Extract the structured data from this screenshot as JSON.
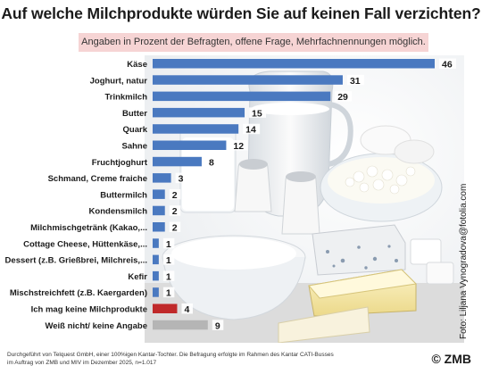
{
  "header": {
    "title": "Auf welche Milchprodukte würden Sie auf keinen Fall verzichten?",
    "subtitle": "Angaben in Prozent der Befragten, offene Frage, Mehrfachnennungen möglich."
  },
  "chart_data": {
    "type": "bar",
    "orientation": "horizontal",
    "title": "Auf welche Milchprodukte würden Sie auf keinen Fall verzichten?",
    "subtitle": "Angaben in Prozent der Befragten, offene Frage, Mehrfachnennungen möglich.",
    "categories": [
      "Käse",
      "Joghurt, natur",
      "Trinkmilch",
      "Butter",
      "Quark",
      "Sahne",
      "Fruchtjoghurt",
      "Schmand, Creme fraiche",
      "Buttermilch",
      "Kondensmilch",
      "Milchmischgetränk (Kakao,...",
      "Cottage Cheese, Hüttenkäse,...",
      "Dessert (z.B. Grießbrei, Milchreis,...",
      "Kefir",
      "Mischstreichfett (z.B. Kaergarden)",
      "Ich mag keine Milchprodukte",
      "Weiß nicht/ keine Angabe"
    ],
    "values": [
      46,
      31,
      29,
      15,
      14,
      12,
      8,
      3,
      2,
      2,
      2,
      1,
      1,
      1,
      1,
      4,
      9
    ],
    "bar_colors": [
      "#4a79c0",
      "#4a79c0",
      "#4a79c0",
      "#4a79c0",
      "#4a79c0",
      "#4a79c0",
      "#4a79c0",
      "#4a79c0",
      "#4a79c0",
      "#4a79c0",
      "#4a79c0",
      "#4a79c0",
      "#4a79c0",
      "#4a79c0",
      "#4a79c0",
      "#c0292a",
      "#b5b5b5"
    ],
    "xlim": [
      0,
      46
    ],
    "grid": false,
    "legend": "none"
  },
  "colors": {
    "bar_main": "#4a79c0",
    "bar_highlight": "#c0292a",
    "bar_neutral": "#b5b5b5",
    "subtitle_bg": "#f6d4d4"
  },
  "credits": {
    "photo": "Foto: Liljana Vynogradova@fotolia.com",
    "footnote_line1": "Durchgeführt von Telquest GmbH, einer 100%igen Kantar-Tochter. Die Befragung erfolgte im Rahmen des Kantar CATI-Busses",
    "footnote_line2": "im Auftrag von ZMB und MIV im Dezember 2025, n=1.017",
    "brand": "© ZMB"
  }
}
